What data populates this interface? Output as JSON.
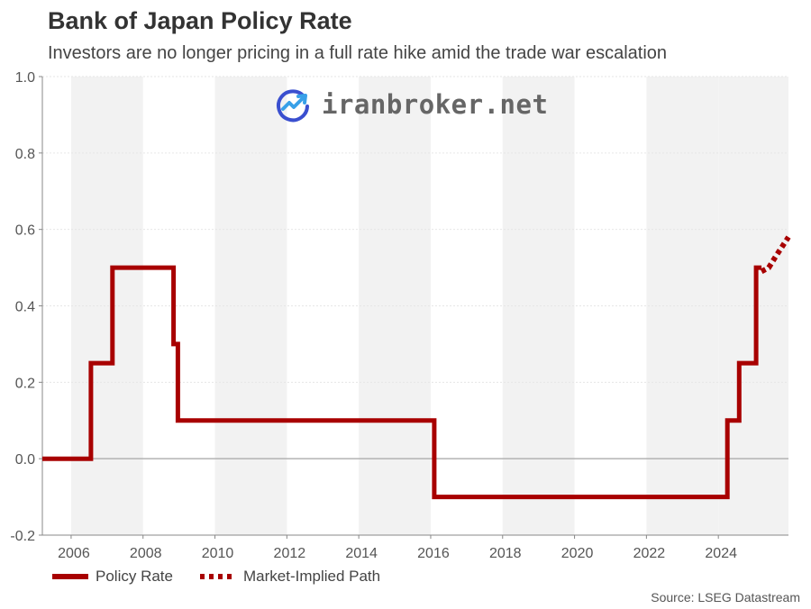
{
  "header": {
    "title": "Bank of Japan Policy Rate",
    "subtitle": "Investors are no longer pricing in a full rate hike amid the trade war escalation"
  },
  "watermark": {
    "text": "iranbroker.net",
    "icon": "chart-trend-icon"
  },
  "source": "Source: LSEG Datastream",
  "colors": {
    "series": "#a80000",
    "band": "#f2f2f2",
    "zero_line": "#b3b3b3",
    "axis": "#888888"
  },
  "chart_data": {
    "type": "line",
    "title": "Bank of Japan Policy Rate",
    "subtitle": "Investors are no longer pricing in a full rate hike amid the trade war escalation",
    "xlim": [
      2005.2,
      2025.95
    ],
    "ylim": [
      -0.2,
      1.0
    ],
    "x_ticks": [
      "2006",
      "2008",
      "2010",
      "2012",
      "2014",
      "2016",
      "2018",
      "2020",
      "2022",
      "2024"
    ],
    "y_ticks": [
      "-0.2",
      "0.0",
      "0.2",
      "0.4",
      "0.6",
      "0.8",
      "1.0"
    ],
    "grid": "alternating vertical year bands",
    "legend_position": "bottom-left",
    "series": [
      {
        "name": "Policy Rate",
        "style": "solid step",
        "points": [
          [
            2005.2,
            0.0
          ],
          [
            2006.55,
            0.0
          ],
          [
            2006.55,
            0.25
          ],
          [
            2007.15,
            0.25
          ],
          [
            2007.15,
            0.5
          ],
          [
            2008.85,
            0.5
          ],
          [
            2008.85,
            0.3
          ],
          [
            2008.97,
            0.3
          ],
          [
            2008.97,
            0.1
          ],
          [
            2016.1,
            0.1
          ],
          [
            2016.1,
            -0.1
          ],
          [
            2024.25,
            -0.1
          ],
          [
            2024.25,
            0.1
          ],
          [
            2024.58,
            0.1
          ],
          [
            2024.58,
            0.25
          ],
          [
            2025.05,
            0.25
          ],
          [
            2025.05,
            0.5
          ],
          [
            2025.2,
            0.5
          ]
        ]
      },
      {
        "name": "Market-Implied Path",
        "style": "dotted",
        "points": [
          [
            2025.2,
            0.49
          ],
          [
            2025.4,
            0.5
          ],
          [
            2025.6,
            0.53
          ],
          [
            2025.95,
            0.58
          ]
        ]
      }
    ]
  }
}
